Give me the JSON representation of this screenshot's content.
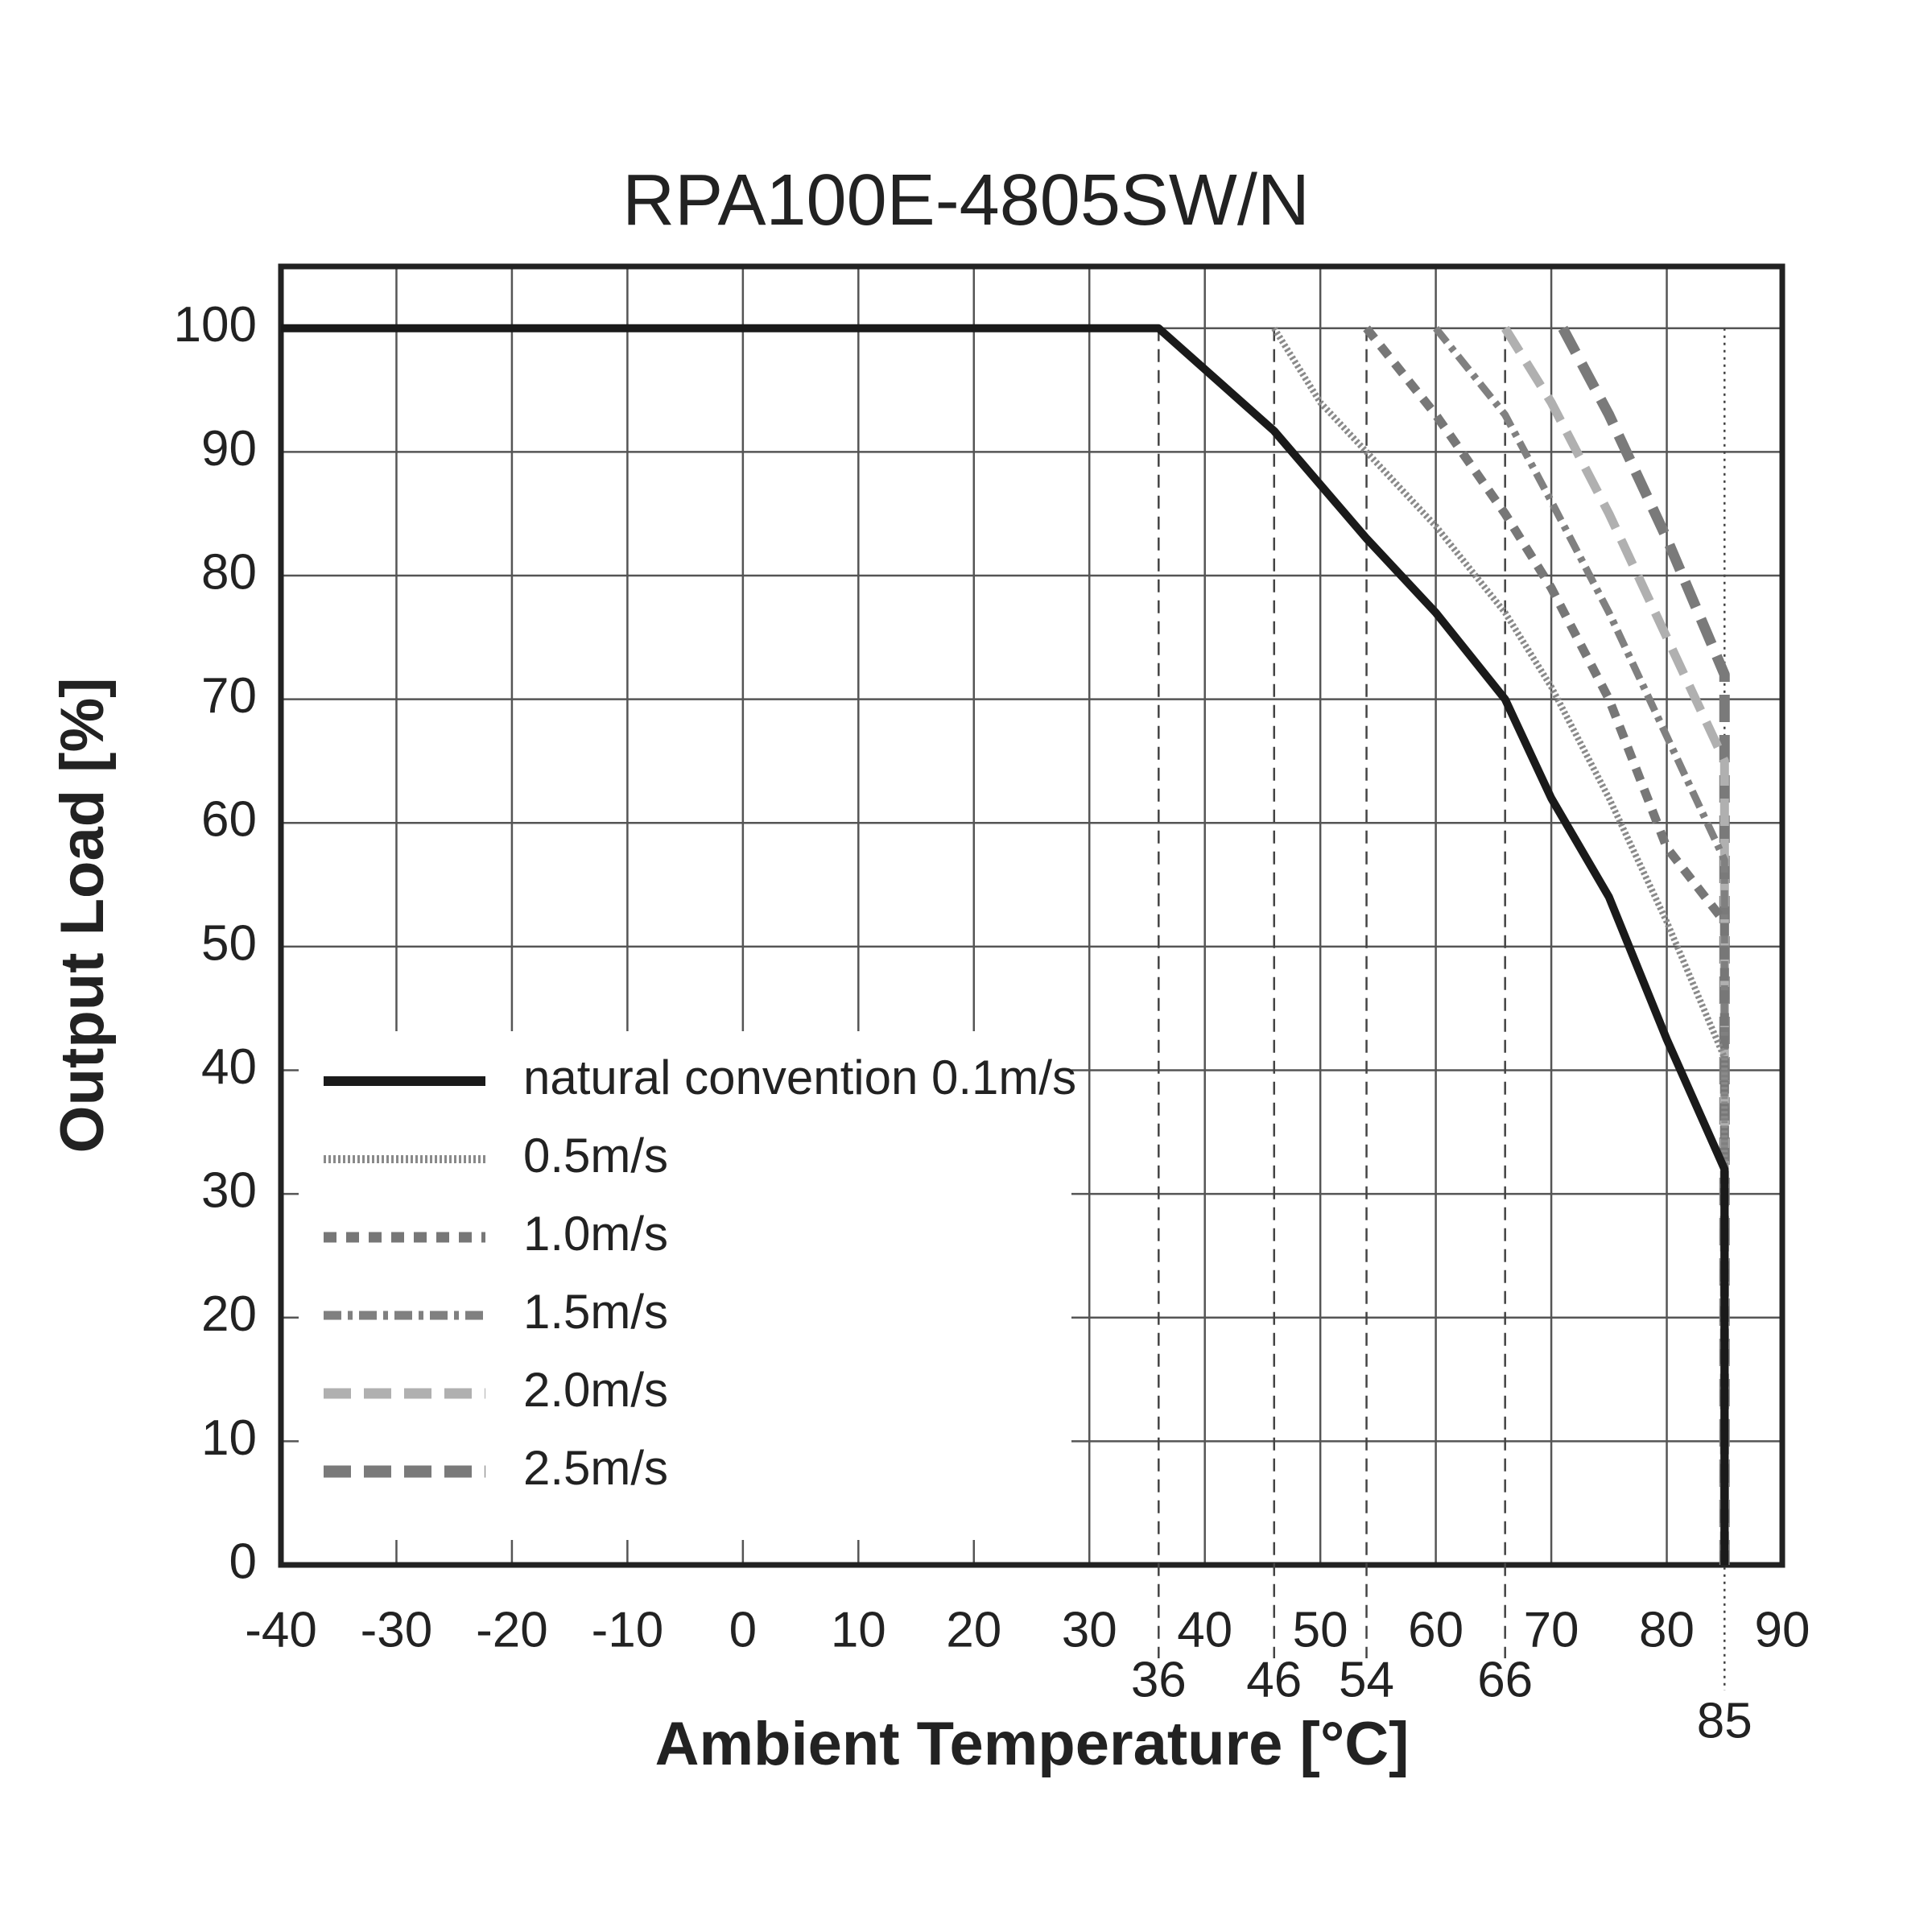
{
  "chart_data": {
    "type": "line",
    "title": "RPA100E-4805SW/N",
    "x_label": "Ambient Temperature [°C]",
    "y_label": "Output Load [%]",
    "xlim": [
      -40,
      90
    ],
    "ylim": [
      0,
      105
    ],
    "xticks": [
      -40,
      -30,
      -20,
      -10,
      0,
      10,
      20,
      30,
      40,
      50,
      60,
      70,
      80,
      90
    ],
    "yticks": [
      0,
      10,
      20,
      30,
      40,
      50,
      60,
      70,
      80,
      90,
      100
    ],
    "grid": true,
    "legend": "lower left",
    "x_markers": [
      36,
      46,
      54,
      66,
      85
    ],
    "series": [
      {
        "name": "natural convention 0.1m/s",
        "color": "#1a1a1a",
        "dash": "solid",
        "x": [
          -40,
          36,
          46,
          54,
          60,
          66,
          70,
          75,
          80,
          85,
          85
        ],
        "values": [
          100,
          100,
          91.7,
          83,
          77,
          70,
          62,
          54,
          42.5,
          32,
          0
        ]
      },
      {
        "name": "0.5m/s",
        "color": "#8a8a8a",
        "dash": "dotted",
        "x": [
          46,
          50,
          60,
          66,
          70,
          75,
          80,
          85,
          85
        ],
        "values": [
          100,
          94,
          84,
          77,
          71,
          62,
          52,
          41,
          0
        ]
      },
      {
        "name": "1.0m/s",
        "color": "#777777",
        "dash": "dashed",
        "x": [
          54,
          60,
          66,
          70,
          75,
          80,
          85,
          85
        ],
        "values": [
          100,
          93,
          85,
          79,
          70,
          58,
          52,
          0
        ]
      },
      {
        "name": "1.5m/s",
        "color": "#808080",
        "dash": "dashdot",
        "x": [
          60,
          66,
          70,
          75,
          80,
          85,
          85
        ],
        "values": [
          100,
          93,
          86,
          77,
          67,
          57,
          0
        ]
      },
      {
        "name": "2.0m/s",
        "color": "#b0b0b0",
        "dash": "longdash",
        "x": [
          66,
          70,
          75,
          80,
          85,
          85
        ],
        "values": [
          100,
          94,
          85,
          75,
          65,
          0
        ]
      },
      {
        "name": "2.5m/s",
        "color": "#7a7a7a",
        "dash": "longdash-heavy",
        "x": [
          71,
          75,
          80,
          85,
          85
        ],
        "values": [
          100,
          93,
          83,
          72,
          0
        ]
      }
    ]
  }
}
